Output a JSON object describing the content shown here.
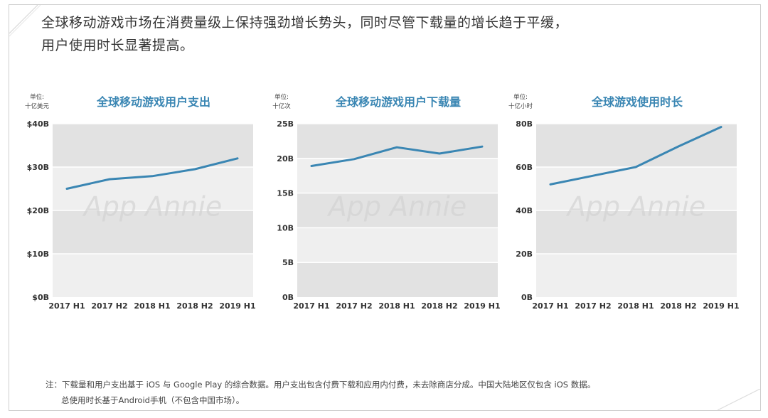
{
  "headline": {
    "line1": "全球移动游戏市场在消费量级上保持强劲增长势头，同时尽管下载量的增长趋于平缓，",
    "line2": "用户使用时长显著提高。"
  },
  "watermark": "App Annie",
  "colors": {
    "line": "#3a86b3",
    "band_dark": "#e2e2e2",
    "band_light": "#efefef",
    "title": "#3a86b3"
  },
  "chart_data": [
    {
      "type": "line",
      "title": "全球移动游戏用户支出",
      "unit_line1": "单位:",
      "unit_line2": "十亿美元",
      "x": [
        "2017 H1",
        "2017 H2",
        "2018 H1",
        "2018 H2",
        "2019 H1"
      ],
      "y_ticks": [
        "$0B",
        "$10B",
        "$20B",
        "$30B",
        "$40B"
      ],
      "ylim": [
        0,
        40
      ],
      "series": [
        {
          "values": [
            25,
            27.2,
            27.9,
            29.5,
            32
          ]
        }
      ]
    },
    {
      "type": "line",
      "title": "全球移动游戏用户下载量",
      "unit_line1": "单位:",
      "unit_line2": "十亿次",
      "x": [
        "2017 H1",
        "2017 H2",
        "2018 H1",
        "2018 H2",
        "2019 H1"
      ],
      "y_ticks": [
        "0B",
        "5B",
        "10B",
        "15B",
        "20B",
        "25B"
      ],
      "ylim": [
        0,
        25
      ],
      "series": [
        {
          "values": [
            18.9,
            19.9,
            21.6,
            20.7,
            21.7
          ]
        }
      ]
    },
    {
      "type": "line",
      "title": "全球游戏使用时长",
      "unit_line1": "单位:",
      "unit_line2": "十亿小时",
      "x": [
        "2017 H1",
        "2017 H2",
        "2018 H1",
        "2018 H2",
        "2019 H1"
      ],
      "y_ticks": [
        "0B",
        "20B",
        "40B",
        "60B",
        "80B"
      ],
      "ylim": [
        0,
        80
      ],
      "series": [
        {
          "values": [
            52,
            56,
            60,
            69.5,
            78.5
          ]
        }
      ]
    }
  ],
  "note": {
    "line1": "注：下载量和用户支出基于 iOS 与 Google Play 的综合数据。用户支出包含付费下载和应用内付费，未去除商店分成。中国大陆地区仅包含 iOS 数据。",
    "line2": "总使用时长基于Android手机（不包含中国市场）。"
  }
}
